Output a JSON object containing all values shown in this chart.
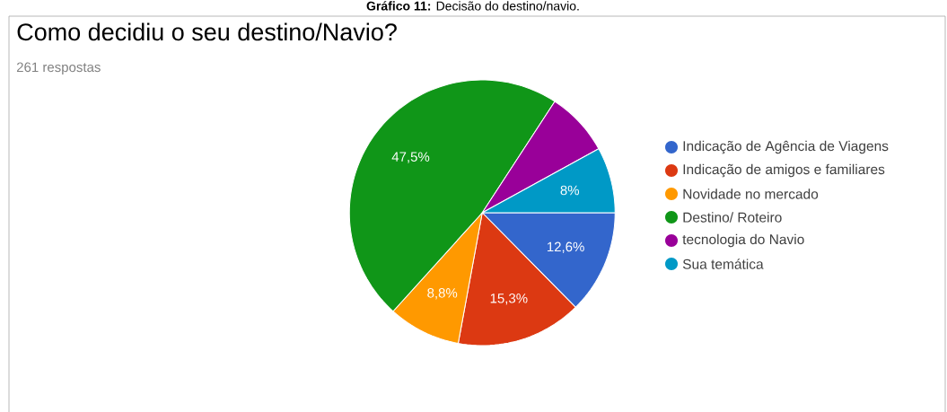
{
  "chart_data": {
    "type": "pie",
    "title": "Como decidiu o seu destino/Navio?",
    "subtitle": "261 respostas",
    "annotations": [
      "**Gráfico 11:** Decisão do destino/navio."
    ],
    "categories": [
      "Indicação de Agência de Viagens",
      "Indicação de amigos e familiares",
      "Novidade no mercado",
      "Destino/ Roteiro",
      "tecnologia do Navio",
      "Sua temática"
    ],
    "values": [
      12.6,
      15.3,
      8.8,
      47.5,
      7.8,
      8
    ],
    "value_labels": [
      "12,6%",
      "15,3%",
      "8,8%",
      "47,5%",
      null,
      "8%"
    ],
    "colors": [
      "#3366cc",
      "#dc3912",
      "#ff9900",
      "#109618",
      "#990099",
      "#0099c6"
    ],
    "legend": "right"
  }
}
